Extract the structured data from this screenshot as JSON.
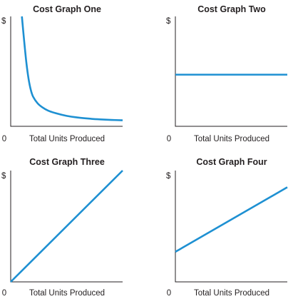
{
  "chart_data": [
    {
      "type": "line",
      "title": "Cost Graph One",
      "xlabel": "Total Units Produced",
      "ylabel": "$",
      "origin_label": "0",
      "xlim": [
        0,
        100
      ],
      "ylim": [
        0,
        100
      ],
      "grid": false,
      "series": [
        {
          "color": "#1e90d2",
          "x": [
            10,
            12,
            14,
            16,
            18,
            20,
            24,
            28,
            33,
            40,
            50,
            60,
            70,
            80,
            90,
            100
          ],
          "y": [
            100,
            78,
            58,
            43,
            33,
            27,
            21,
            17.5,
            14.5,
            12,
            9.5,
            8,
            7,
            6.3,
            5.8,
            5.5
          ]
        }
      ]
    },
    {
      "type": "line",
      "title": "Cost Graph Two",
      "xlabel": "Total Units Produced",
      "ylabel": "$",
      "origin_label": "0",
      "xlim": [
        0,
        100
      ],
      "ylim": [
        0,
        100
      ],
      "grid": false,
      "series": [
        {
          "color": "#1e90d2",
          "x": [
            0,
            100
          ],
          "y": [
            47,
            47
          ]
        }
      ]
    },
    {
      "type": "line",
      "title": "Cost Graph Three",
      "xlabel": "Total Units Produced",
      "ylabel": "$",
      "origin_label": "0",
      "xlim": [
        0,
        100
      ],
      "ylim": [
        0,
        100
      ],
      "grid": false,
      "series": [
        {
          "color": "#1e90d2",
          "x": [
            0,
            100
          ],
          "y": [
            0,
            100
          ]
        }
      ]
    },
    {
      "type": "line",
      "title": "Cost Graph Four",
      "xlabel": "Total Units Produced",
      "ylabel": "$",
      "origin_label": "0",
      "xlim": [
        0,
        100
      ],
      "ylim": [
        0,
        100
      ],
      "grid": false,
      "series": [
        {
          "color": "#1e90d2",
          "x": [
            0,
            100
          ],
          "y": [
            27,
            85
          ]
        }
      ]
    }
  ]
}
